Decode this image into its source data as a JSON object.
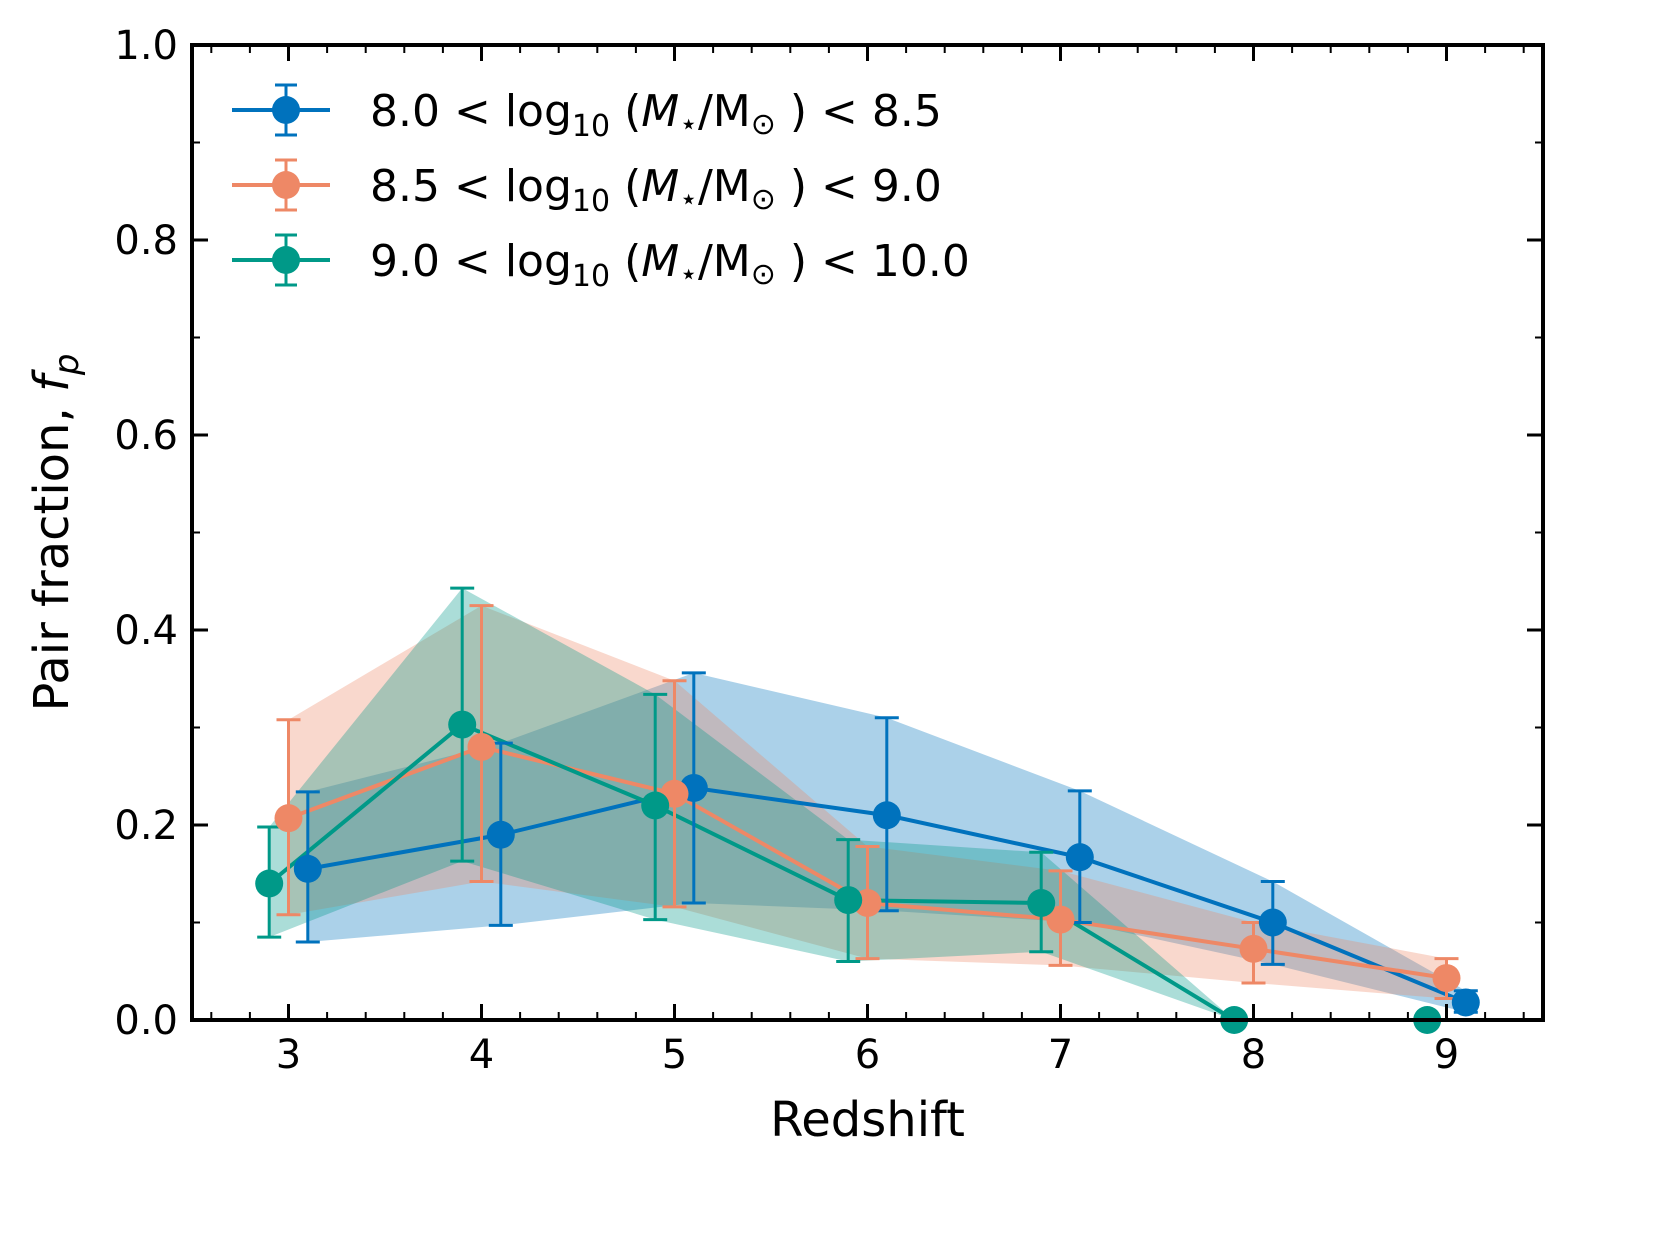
{
  "chart_data": {
    "type": "line",
    "title": "",
    "xlabel": "Redshift",
    "ylabel": "Pair fraction, ",
    "ylabel_symbol": "f",
    "ylabel_symbol_sub": "p",
    "xlim": [
      2.5,
      9.5
    ],
    "ylim": [
      0.0,
      1.0
    ],
    "xticks": [
      3,
      4,
      5,
      6,
      7,
      8,
      9
    ],
    "xtick_labels": [
      "3",
      "4",
      "5",
      "6",
      "7",
      "8",
      "9"
    ],
    "yticks": [
      0.0,
      0.2,
      0.4,
      0.6,
      0.8,
      1.0
    ],
    "ytick_labels": [
      "0.0",
      "0.2",
      "0.4",
      "0.6",
      "0.8",
      "1.0"
    ],
    "grid": false,
    "legend_position": "top-left",
    "series": [
      {
        "name": "8.0 < log10 (M⋆/M⊙) < 8.5",
        "legend": {
          "low": "8.0",
          "high": "8.5"
        },
        "color": "#0072BD",
        "x": [
          3.1,
          4.1,
          5.1,
          6.1,
          7.1,
          8.1,
          9.1
        ],
        "y": [
          0.155,
          0.19,
          0.238,
          0.21,
          0.167,
          0.1,
          0.018
        ],
        "y_low": [
          0.08,
          0.097,
          0.12,
          0.112,
          0.1,
          0.057,
          0.008
        ],
        "y_high": [
          0.234,
          0.284,
          0.356,
          0.31,
          0.235,
          0.142,
          0.03
        ]
      },
      {
        "name": "8.5 < log10 (M⋆/M⊙) < 9.0",
        "legend": {
          "low": "8.5",
          "high": "9.0"
        },
        "color": "#EE8866",
        "x": [
          3.0,
          4.0,
          5.0,
          6.0,
          7.0,
          8.0,
          9.0
        ],
        "y": [
          0.207,
          0.28,
          0.232,
          0.12,
          0.103,
          0.073,
          0.043
        ],
        "y_low": [
          0.108,
          0.142,
          0.116,
          0.063,
          0.056,
          0.038,
          0.022
        ],
        "y_high": [
          0.308,
          0.425,
          0.348,
          0.178,
          0.153,
          0.1,
          0.063
        ]
      },
      {
        "name": "9.0 < log10 (M⋆/M⊙) < 10.0",
        "legend": {
          "low": "9.0",
          "high": "10.0"
        },
        "color": "#009988",
        "x": [
          2.9,
          3.9,
          4.9,
          5.9,
          6.9,
          7.9,
          8.9
        ],
        "y": [
          0.14,
          0.303,
          0.22,
          0.123,
          0.12,
          0.0,
          0.0
        ],
        "y_low": [
          0.085,
          0.163,
          0.103,
          0.06,
          0.07,
          0.0,
          0.0
        ],
        "y_high": [
          0.198,
          0.443,
          0.334,
          0.185,
          0.172,
          0.0,
          0.0
        ]
      }
    ]
  }
}
